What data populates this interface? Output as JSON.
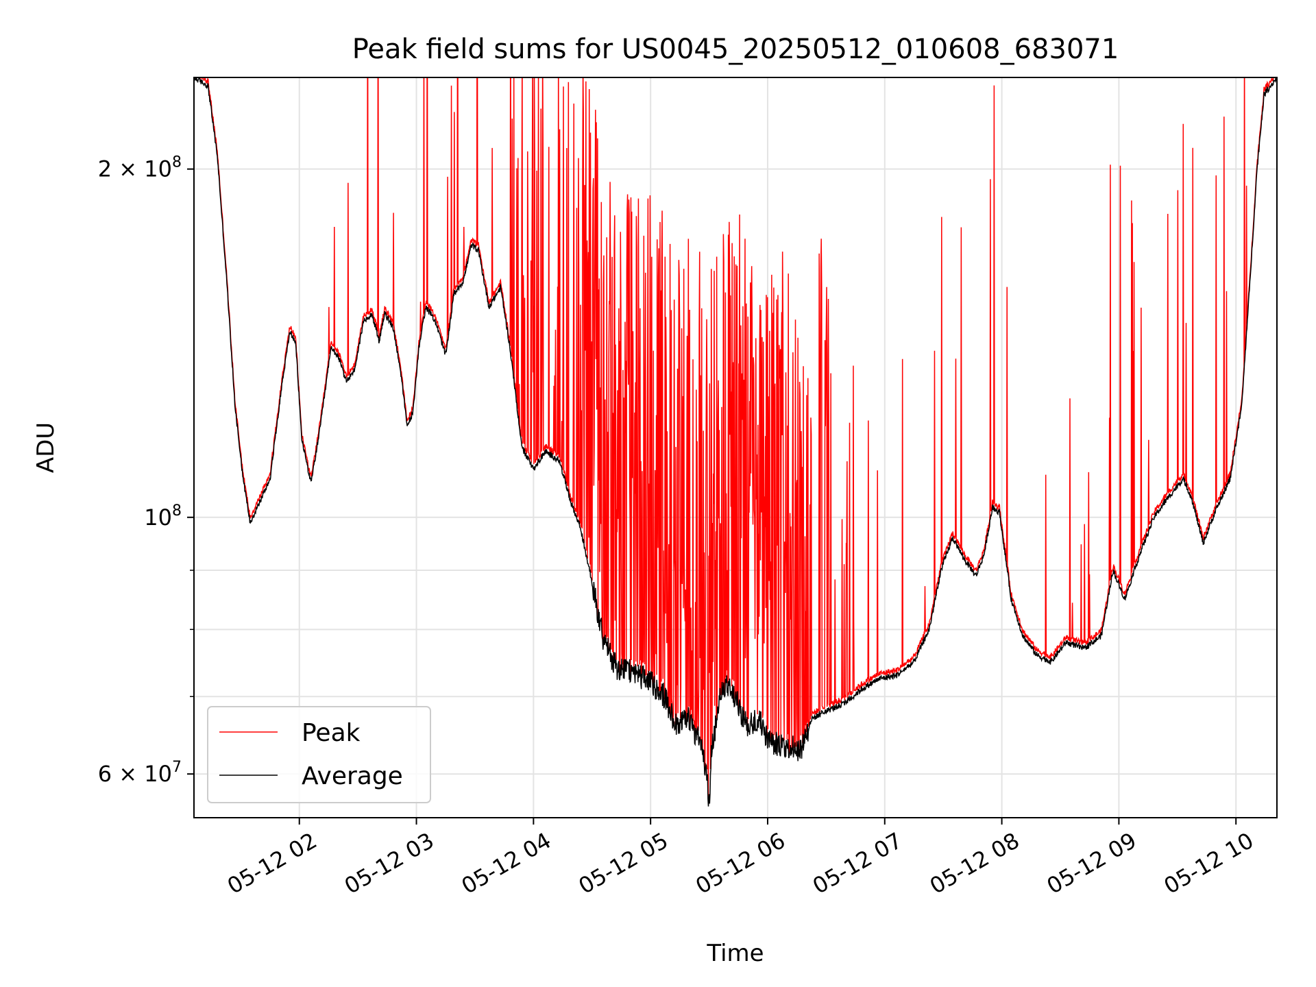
{
  "chart_data": {
    "type": "line",
    "title": "Peak field sums for US0045_20250512_010608_683071",
    "xlabel": "Time",
    "ylabel": "ADU",
    "x_tick_labels": [
      "05-12 02",
      "05-12 03",
      "05-12 04",
      "05-12 05",
      "05-12 06",
      "05-12 07",
      "05-12 08",
      "05-12 09",
      "05-12 10"
    ],
    "x_ticks_hours": [
      2,
      3,
      4,
      5,
      6,
      7,
      8,
      9,
      10
    ],
    "xlim_hours": [
      1.1,
      10.35
    ],
    "y_scale": "log",
    "ylim": [
      55000000,
      240000000
    ],
    "y_major_ticks": [
      {
        "value": 60000000,
        "mantissa": "6",
        "exponent": "7"
      },
      {
        "value": 100000000,
        "mantissa": "",
        "exponent": "8"
      },
      {
        "value": 200000000,
        "mantissa": "2",
        "exponent": "8"
      }
    ],
    "y_minor_ticks": [
      70000000,
      80000000,
      90000000
    ],
    "grid": true,
    "legend_position": "lower-left",
    "series": [
      {
        "name": "Peak",
        "color": "#ff0000"
      },
      {
        "name": "Average",
        "color": "#000000"
      }
    ],
    "average_points": [
      [
        1.1,
        240000000
      ],
      [
        1.22,
        236000000
      ],
      [
        1.3,
        205000000
      ],
      [
        1.38,
        160000000
      ],
      [
        1.45,
        125000000
      ],
      [
        1.52,
        108000000
      ],
      [
        1.58,
        99000000
      ],
      [
        1.66,
        103000000
      ],
      [
        1.75,
        108000000
      ],
      [
        1.85,
        130000000
      ],
      [
        1.92,
        145000000
      ],
      [
        1.97,
        141000000
      ],
      [
        2.02,
        117000000
      ],
      [
        2.1,
        107000000
      ],
      [
        2.18,
        120000000
      ],
      [
        2.27,
        140000000
      ],
      [
        2.33,
        138000000
      ],
      [
        2.4,
        131000000
      ],
      [
        2.47,
        134000000
      ],
      [
        2.55,
        148000000
      ],
      [
        2.62,
        150000000
      ],
      [
        2.68,
        142000000
      ],
      [
        2.73,
        150000000
      ],
      [
        2.8,
        146000000
      ],
      [
        2.86,
        135000000
      ],
      [
        2.92,
        120000000
      ],
      [
        2.97,
        123000000
      ],
      [
        3.02,
        140000000
      ],
      [
        3.08,
        152000000
      ],
      [
        3.16,
        148000000
      ],
      [
        3.25,
        138000000
      ],
      [
        3.32,
        156000000
      ],
      [
        3.4,
        160000000
      ],
      [
        3.47,
        172000000
      ],
      [
        3.53,
        170000000
      ],
      [
        3.62,
        152000000
      ],
      [
        3.72,
        158000000
      ],
      [
        3.8,
        140000000
      ],
      [
        3.9,
        115000000
      ],
      [
        4.0,
        110000000
      ],
      [
        4.1,
        114000000
      ],
      [
        4.22,
        112000000
      ],
      [
        4.32,
        103000000
      ],
      [
        4.4,
        98000000
      ],
      [
        4.5,
        88000000
      ],
      [
        4.6,
        78000000
      ],
      [
        4.72,
        74000000
      ],
      [
        4.85,
        73500000
      ],
      [
        5.0,
        72000000
      ],
      [
        5.12,
        70000000
      ],
      [
        5.22,
        66000000
      ],
      [
        5.32,
        67000000
      ],
      [
        5.42,
        64000000
      ],
      [
        5.48,
        60000000
      ],
      [
        5.5,
        56000000
      ],
      [
        5.52,
        63000000
      ],
      [
        5.62,
        72000000
      ],
      [
        5.72,
        70000000
      ],
      [
        5.82,
        66000000
      ],
      [
        5.92,
        67000000
      ],
      [
        6.02,
        64000000
      ],
      [
        6.15,
        63500000
      ],
      [
        6.28,
        63000000
      ],
      [
        6.38,
        67000000
      ],
      [
        6.5,
        68000000
      ],
      [
        6.65,
        69000000
      ],
      [
        6.8,
        71000000
      ],
      [
        6.95,
        72500000
      ],
      [
        7.1,
        73000000
      ],
      [
        7.25,
        75000000
      ],
      [
        7.38,
        80000000
      ],
      [
        7.48,
        90000000
      ],
      [
        7.58,
        96000000
      ],
      [
        7.68,
        92000000
      ],
      [
        7.78,
        89000000
      ],
      [
        7.85,
        93000000
      ],
      [
        7.92,
        102000000
      ],
      [
        7.98,
        101000000
      ],
      [
        8.08,
        85000000
      ],
      [
        8.18,
        79000000
      ],
      [
        8.3,
        76000000
      ],
      [
        8.42,
        75000000
      ],
      [
        8.55,
        78000000
      ],
      [
        8.7,
        77000000
      ],
      [
        8.85,
        79000000
      ],
      [
        8.95,
        90000000
      ],
      [
        9.05,
        85000000
      ],
      [
        9.18,
        93000000
      ],
      [
        9.3,
        100000000
      ],
      [
        9.42,
        104000000
      ],
      [
        9.55,
        108000000
      ],
      [
        9.62,
        104000000
      ],
      [
        9.72,
        95000000
      ],
      [
        9.82,
        101000000
      ],
      [
        9.95,
        108000000
      ],
      [
        10.05,
        125000000
      ],
      [
        10.12,
        160000000
      ],
      [
        10.18,
        200000000
      ],
      [
        10.24,
        232000000
      ],
      [
        10.35,
        240000000
      ]
    ]
  }
}
